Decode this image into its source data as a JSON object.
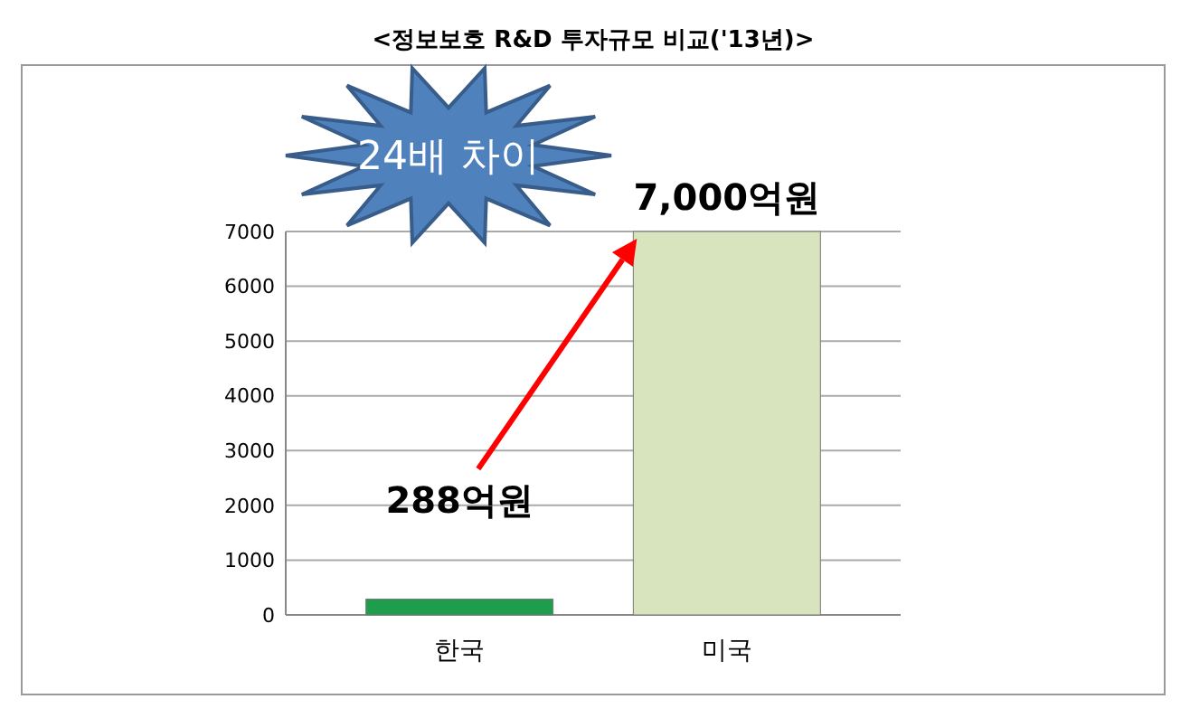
{
  "chart_data": {
    "type": "bar",
    "title": "<정보보호 R&D 투자규모 비교('13년)>",
    "categories": [
      "한국",
      "미국"
    ],
    "values": [
      288,
      7000
    ],
    "colors": [
      "#1e9e4c",
      "#d7e4bd"
    ],
    "value_labels": [
      "288억원",
      "7,000억원"
    ],
    "ylim": [
      0,
      7000
    ],
    "yticks": [
      0,
      1000,
      2000,
      3000,
      4000,
      5000,
      6000,
      7000
    ],
    "grid": "y",
    "annotations": [
      "24배 차이"
    ]
  }
}
